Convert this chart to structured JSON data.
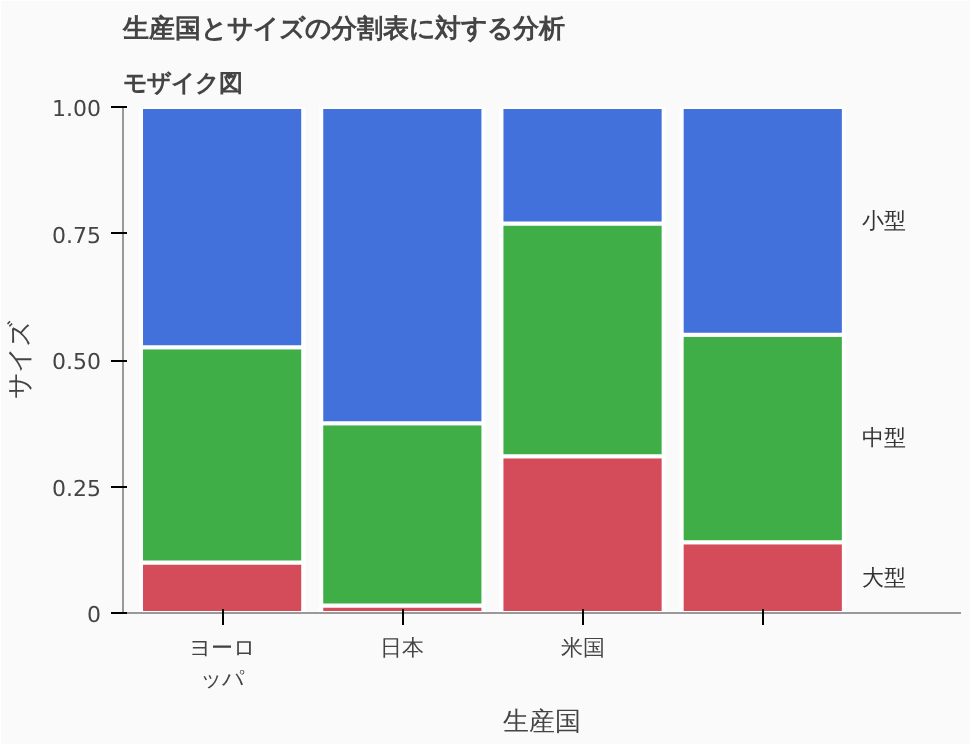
{
  "chart_data": {
    "type": "bar",
    "stacked": true,
    "title": "生産国とサイズの分割表に対する分析",
    "subtitle": "モザイク図",
    "xlabel": "生産国",
    "ylabel": "サイズ",
    "categories": [
      "ヨーロッパ",
      "日本",
      "米国",
      null
    ],
    "series": [
      {
        "name": "大型",
        "color": "#d44b5a",
        "values": [
          0.1,
          0.015,
          0.31,
          0.14
        ]
      },
      {
        "name": "中型",
        "color": "#3fae46",
        "values": [
          0.425,
          0.36,
          0.46,
          0.41
        ]
      },
      {
        "name": "小型",
        "color": "#4271dc",
        "values": [
          0.475,
          0.625,
          0.23,
          0.45
        ]
      }
    ],
    "ylim": [
      0,
      1
    ],
    "yticks": [
      0,
      {
        "value": 0.25,
        "label": "0.25"
      },
      {
        "value": 0.5,
        "label": "0.50"
      },
      {
        "value": 0.75,
        "label": "0.75"
      },
      {
        "value": 1,
        "label": "1.00"
      }
    ],
    "grid": false
  }
}
